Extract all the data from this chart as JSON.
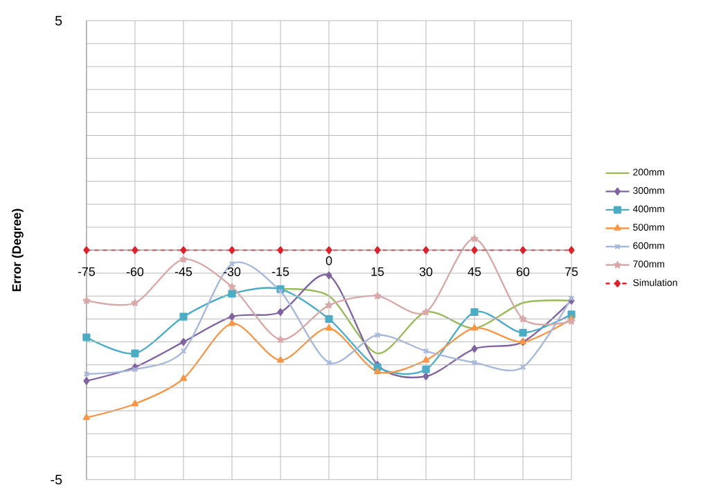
{
  "chart_data": {
    "type": "line",
    "ylabel": "Error (Degree)",
    "categories": [
      "-75",
      "-60",
      "-45",
      "-30",
      "-15",
      "0",
      "15",
      "30",
      "45",
      "60",
      "75"
    ],
    "series": [
      {
        "name": "200mm",
        "color": "#9bbb59",
        "marker": "none",
        "values": [
          null,
          null,
          null,
          null,
          -0.85,
          -1.0,
          -2.25,
          -1.35,
          -1.7,
          -1.15,
          -1.1
        ]
      },
      {
        "name": "300mm",
        "color": "#8064a2",
        "marker": "diamond",
        "values": [
          -2.85,
          -2.55,
          -2.0,
          -1.45,
          -1.35,
          -0.55,
          -2.5,
          -2.75,
          -2.15,
          -2.0,
          -1.1
        ]
      },
      {
        "name": "400mm",
        "color": "#4bacc6",
        "marker": "square",
        "values": [
          -1.9,
          -2.25,
          -1.45,
          -0.95,
          -0.85,
          -1.5,
          -2.55,
          -2.6,
          -1.35,
          -1.8,
          -1.4
        ]
      },
      {
        "name": "500mm",
        "color": "#f79646",
        "marker": "triangle",
        "values": [
          -3.65,
          -3.35,
          -2.8,
          -1.6,
          -2.4,
          -1.7,
          -2.65,
          -2.4,
          -1.7,
          -2.0,
          -1.5
        ]
      },
      {
        "name": "600mm",
        "color": "#a6b8dc",
        "marker": "cross",
        "values": [
          -2.7,
          -2.6,
          -2.2,
          -0.3,
          -0.9,
          -2.45,
          -1.85,
          -2.2,
          -2.45,
          -2.55,
          -1.05
        ]
      },
      {
        "name": "700mm",
        "color": "#d9a8a8",
        "marker": "star",
        "values": [
          -1.1,
          -1.15,
          -0.2,
          -0.8,
          -1.95,
          -1.2,
          -1.0,
          -1.35,
          0.25,
          -1.5,
          -1.55
        ]
      },
      {
        "name": "Simulation",
        "color": "#e0202a",
        "marker": "diamond",
        "line_style": "dashed",
        "values": [
          0,
          0,
          0,
          0,
          0,
          0,
          0,
          0,
          0,
          0,
          0
        ]
      }
    ],
    "ylim": [
      -5,
      5
    ],
    "yticks": [
      -5,
      {
        "value": -4.5,
        "label": null
      },
      {
        "value": -4,
        "label": null
      },
      {
        "value": -3.5,
        "label": null
      },
      {
        "value": -3,
        "label": null
      },
      {
        "value": -2.5,
        "label": null
      },
      {
        "value": -2,
        "label": null
      },
      {
        "value": -1.5,
        "label": null
      },
      {
        "value": -1,
        "label": null
      },
      {
        "value": -0.5,
        "label": null
      },
      {
        "value": 0,
        "label": null
      },
      {
        "value": 0.5,
        "label": null
      },
      {
        "value": 1,
        "label": null
      },
      {
        "value": 1.5,
        "label": null
      },
      {
        "value": 2,
        "label": null
      },
      {
        "value": 2.5,
        "label": null
      },
      {
        "value": 3,
        "label": null
      },
      {
        "value": 3.5,
        "label": null
      },
      {
        "value": 4,
        "label": null
      },
      {
        "value": 4.5,
        "label": null
      },
      5
    ],
    "grid": true,
    "legend": "right"
  }
}
